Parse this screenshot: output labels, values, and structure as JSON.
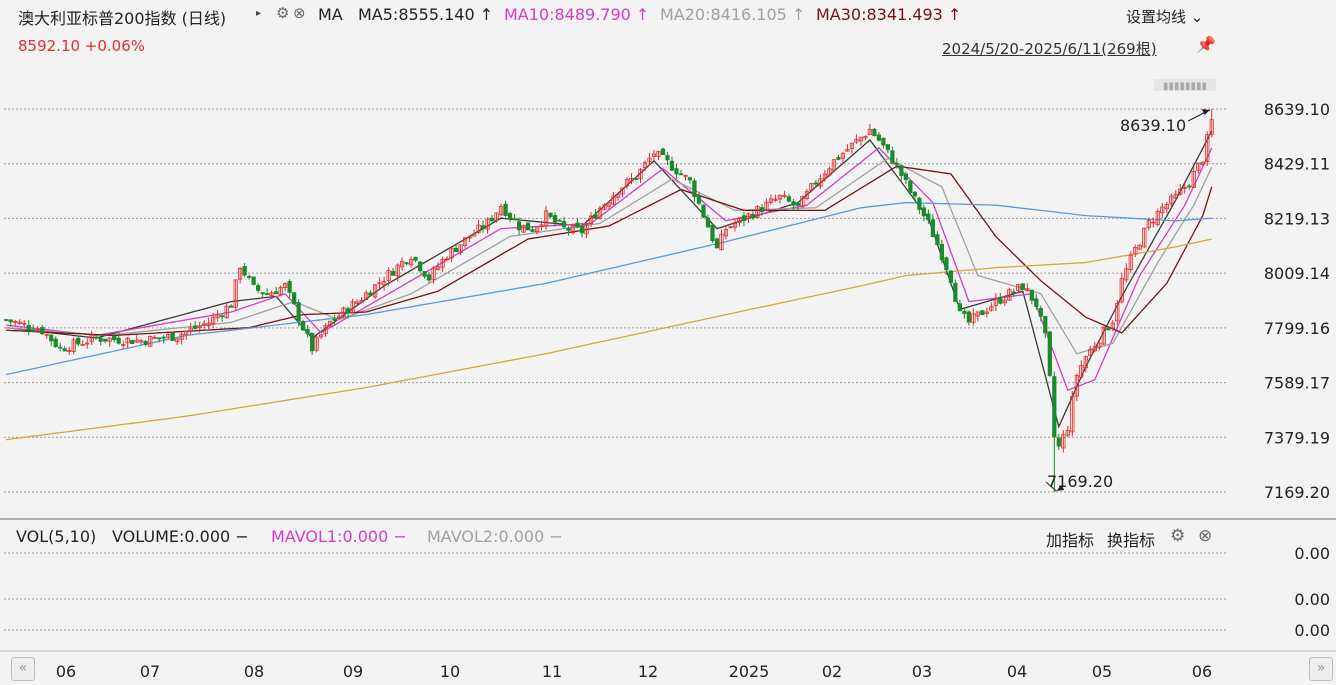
{
  "header": {
    "title": "澳大利亚标普200指数 (日线)",
    "title_arrow": "▸",
    "ma_label": "MA",
    "ma5": "MA5:8555.140 ↑",
    "ma10": "MA10:8489.790 ↑",
    "ma20": "MA20:8416.105 ↑",
    "ma30": "MA30:8341.493 ↑",
    "settings_link": "设置均线 ⌄",
    "price_line": "8592.10  +0.06%",
    "date_range": "2024/5/20-2025/6/11(269根)",
    "pin_icon": "📌",
    "gear_icon": "⚙",
    "close_icon": "⊗"
  },
  "volume_panel": {
    "vol_label": "VOL(5,10)",
    "volume": "VOLUME:0.000 −",
    "mavol1": "MAVOL1:0.000 −",
    "mavol2": "MAVOL2:0.000 −",
    "add_indicator": "加指标",
    "switch_indicator": "换指标",
    "axis_values": [
      "0.00",
      "0.00",
      "0.00"
    ]
  },
  "nav": {
    "left": "«",
    "right": "»"
  },
  "colors": {
    "up": "#e03030",
    "down": "#1a8a2a",
    "ma5": "#3a3a3a",
    "ma10": "#d63cc6",
    "ma20": "#a0a0a0",
    "ma30": "#7a1212",
    "ma_long1": "#5b9bd5",
    "ma_long2": "#d4a83a"
  },
  "chart_data": {
    "type": "candlestick",
    "y_ticks": [
      "8639.10",
      "8429.11",
      "8219.13",
      "8009.14",
      "7799.16",
      "7589.17",
      "7379.19",
      "7169.20"
    ],
    "ylim": [
      7169.2,
      8639.1
    ],
    "x_labels": [
      "06",
      "07",
      "08",
      "09",
      "10",
      "11",
      "12",
      "2025",
      "02",
      "03",
      "04",
      "05",
      "06"
    ],
    "annotations": {
      "high": "8639.10",
      "low": "7169.20"
    },
    "close_path": [
      [
        0,
        7830
      ],
      [
        8,
        7790
      ],
      [
        12,
        7720
      ],
      [
        20,
        7760
      ],
      [
        30,
        7750
      ],
      [
        38,
        7770
      ],
      [
        45,
        7820
      ],
      [
        50,
        7890
      ],
      [
        52,
        8040
      ],
      [
        55,
        7950
      ],
      [
        58,
        7930
      ],
      [
        62,
        7960
      ],
      [
        66,
        7800
      ],
      [
        68,
        7720
      ],
      [
        72,
        7820
      ],
      [
        78,
        7900
      ],
      [
        84,
        7990
      ],
      [
        90,
        8080
      ],
      [
        94,
        7990
      ],
      [
        98,
        8080
      ],
      [
        103,
        8150
      ],
      [
        107,
        8200
      ],
      [
        110,
        8270
      ],
      [
        114,
        8190
      ],
      [
        117,
        8180
      ],
      [
        120,
        8230
      ],
      [
        124,
        8180
      ],
      [
        128,
        8170
      ],
      [
        132,
        8260
      ],
      [
        136,
        8330
      ],
      [
        140,
        8380
      ],
      [
        144,
        8470
      ],
      [
        148,
        8420
      ],
      [
        152,
        8360
      ],
      [
        156,
        8190
      ],
      [
        158,
        8100
      ],
      [
        160,
        8180
      ],
      [
        164,
        8220
      ],
      [
        168,
        8260
      ],
      [
        172,
        8300
      ],
      [
        176,
        8260
      ],
      [
        180,
        8360
      ],
      [
        184,
        8440
      ],
      [
        188,
        8500
      ],
      [
        192,
        8560
      ],
      [
        194,
        8520
      ],
      [
        198,
        8420
      ],
      [
        201,
        8320
      ],
      [
        205,
        8200
      ],
      [
        208,
        8080
      ],
      [
        210,
        7990
      ],
      [
        212,
        7850
      ],
      [
        214,
        7820
      ],
      [
        217,
        7860
      ],
      [
        220,
        7900
      ],
      [
        223,
        7930
      ],
      [
        226,
        7960
      ],
      [
        229,
        7890
      ],
      [
        231,
        7760
      ],
      [
        232,
        7600
      ],
      [
        233,
        7380
      ],
      [
        234,
        7340
      ],
      [
        236,
        7420
      ],
      [
        238,
        7620
      ],
      [
        240,
        7690
      ],
      [
        243,
        7760
      ],
      [
        246,
        7830
      ],
      [
        248,
        7980
      ],
      [
        251,
        8100
      ],
      [
        254,
        8200
      ],
      [
        257,
        8260
      ],
      [
        260,
        8300
      ],
      [
        263,
        8360
      ],
      [
        266,
        8450
      ],
      [
        268,
        8592
      ]
    ],
    "ma_series": [
      {
        "name": "MA5",
        "values": [
          [
            0,
            7800
          ],
          [
            20,
            7760
          ],
          [
            50,
            7900
          ],
          [
            60,
            7920
          ],
          [
            68,
            7760
          ],
          [
            84,
            7960
          ],
          [
            110,
            8220
          ],
          [
            128,
            8190
          ],
          [
            144,
            8440
          ],
          [
            158,
            8180
          ],
          [
            176,
            8280
          ],
          [
            192,
            8520
          ],
          [
            205,
            8220
          ],
          [
            212,
            7870
          ],
          [
            226,
            7940
          ],
          [
            234,
            7420
          ],
          [
            240,
            7650
          ],
          [
            248,
            7920
          ],
          [
            260,
            8290
          ],
          [
            268,
            8555
          ]
        ]
      },
      {
        "name": "MA10",
        "values": [
          [
            0,
            7810
          ],
          [
            20,
            7770
          ],
          [
            50,
            7860
          ],
          [
            62,
            7930
          ],
          [
            70,
            7780
          ],
          [
            86,
            7940
          ],
          [
            110,
            8180
          ],
          [
            130,
            8200
          ],
          [
            146,
            8410
          ],
          [
            160,
            8210
          ],
          [
            178,
            8270
          ],
          [
            194,
            8490
          ],
          [
            206,
            8280
          ],
          [
            214,
            7900
          ],
          [
            228,
            7930
          ],
          [
            236,
            7560
          ],
          [
            242,
            7600
          ],
          [
            252,
            8000
          ],
          [
            262,
            8270
          ],
          [
            268,
            8490
          ]
        ]
      },
      {
        "name": "MA20",
        "values": [
          [
            0,
            7800
          ],
          [
            22,
            7770
          ],
          [
            50,
            7820
          ],
          [
            64,
            7900
          ],
          [
            74,
            7830
          ],
          [
            90,
            7930
          ],
          [
            112,
            8150
          ],
          [
            132,
            8200
          ],
          [
            148,
            8370
          ],
          [
            162,
            8250
          ],
          [
            180,
            8260
          ],
          [
            196,
            8450
          ],
          [
            208,
            8340
          ],
          [
            216,
            8000
          ],
          [
            230,
            7930
          ],
          [
            238,
            7700
          ],
          [
            246,
            7740
          ],
          [
            256,
            8050
          ],
          [
            264,
            8270
          ],
          [
            268,
            8416
          ]
        ]
      },
      {
        "name": "MA30",
        "values": [
          [
            0,
            7790
          ],
          [
            24,
            7770
          ],
          [
            54,
            7800
          ],
          [
            66,
            7850
          ],
          [
            80,
            7860
          ],
          [
            96,
            7940
          ],
          [
            116,
            8140
          ],
          [
            134,
            8190
          ],
          [
            150,
            8330
          ],
          [
            164,
            8250
          ],
          [
            182,
            8250
          ],
          [
            198,
            8420
          ],
          [
            210,
            8390
          ],
          [
            220,
            8150
          ],
          [
            230,
            7980
          ],
          [
            240,
            7840
          ],
          [
            248,
            7780
          ],
          [
            258,
            7970
          ],
          [
            266,
            8230
          ],
          [
            268,
            8341
          ]
        ]
      },
      {
        "name": "MA_long1",
        "values": [
          [
            0,
            7620
          ],
          [
            40,
            7770
          ],
          [
            80,
            7850
          ],
          [
            120,
            7970
          ],
          [
            160,
            8130
          ],
          [
            190,
            8260
          ],
          [
            200,
            8280
          ],
          [
            220,
            8270
          ],
          [
            240,
            8230
          ],
          [
            260,
            8210
          ],
          [
            268,
            8220
          ]
        ]
      },
      {
        "name": "MA_long2",
        "values": [
          [
            0,
            7370
          ],
          [
            40,
            7460
          ],
          [
            80,
            7570
          ],
          [
            120,
            7700
          ],
          [
            160,
            7850
          ],
          [
            190,
            7960
          ],
          [
            200,
            8000
          ],
          [
            220,
            8030
          ],
          [
            240,
            8050
          ],
          [
            260,
            8110
          ],
          [
            268,
            8140
          ]
        ]
      }
    ]
  }
}
